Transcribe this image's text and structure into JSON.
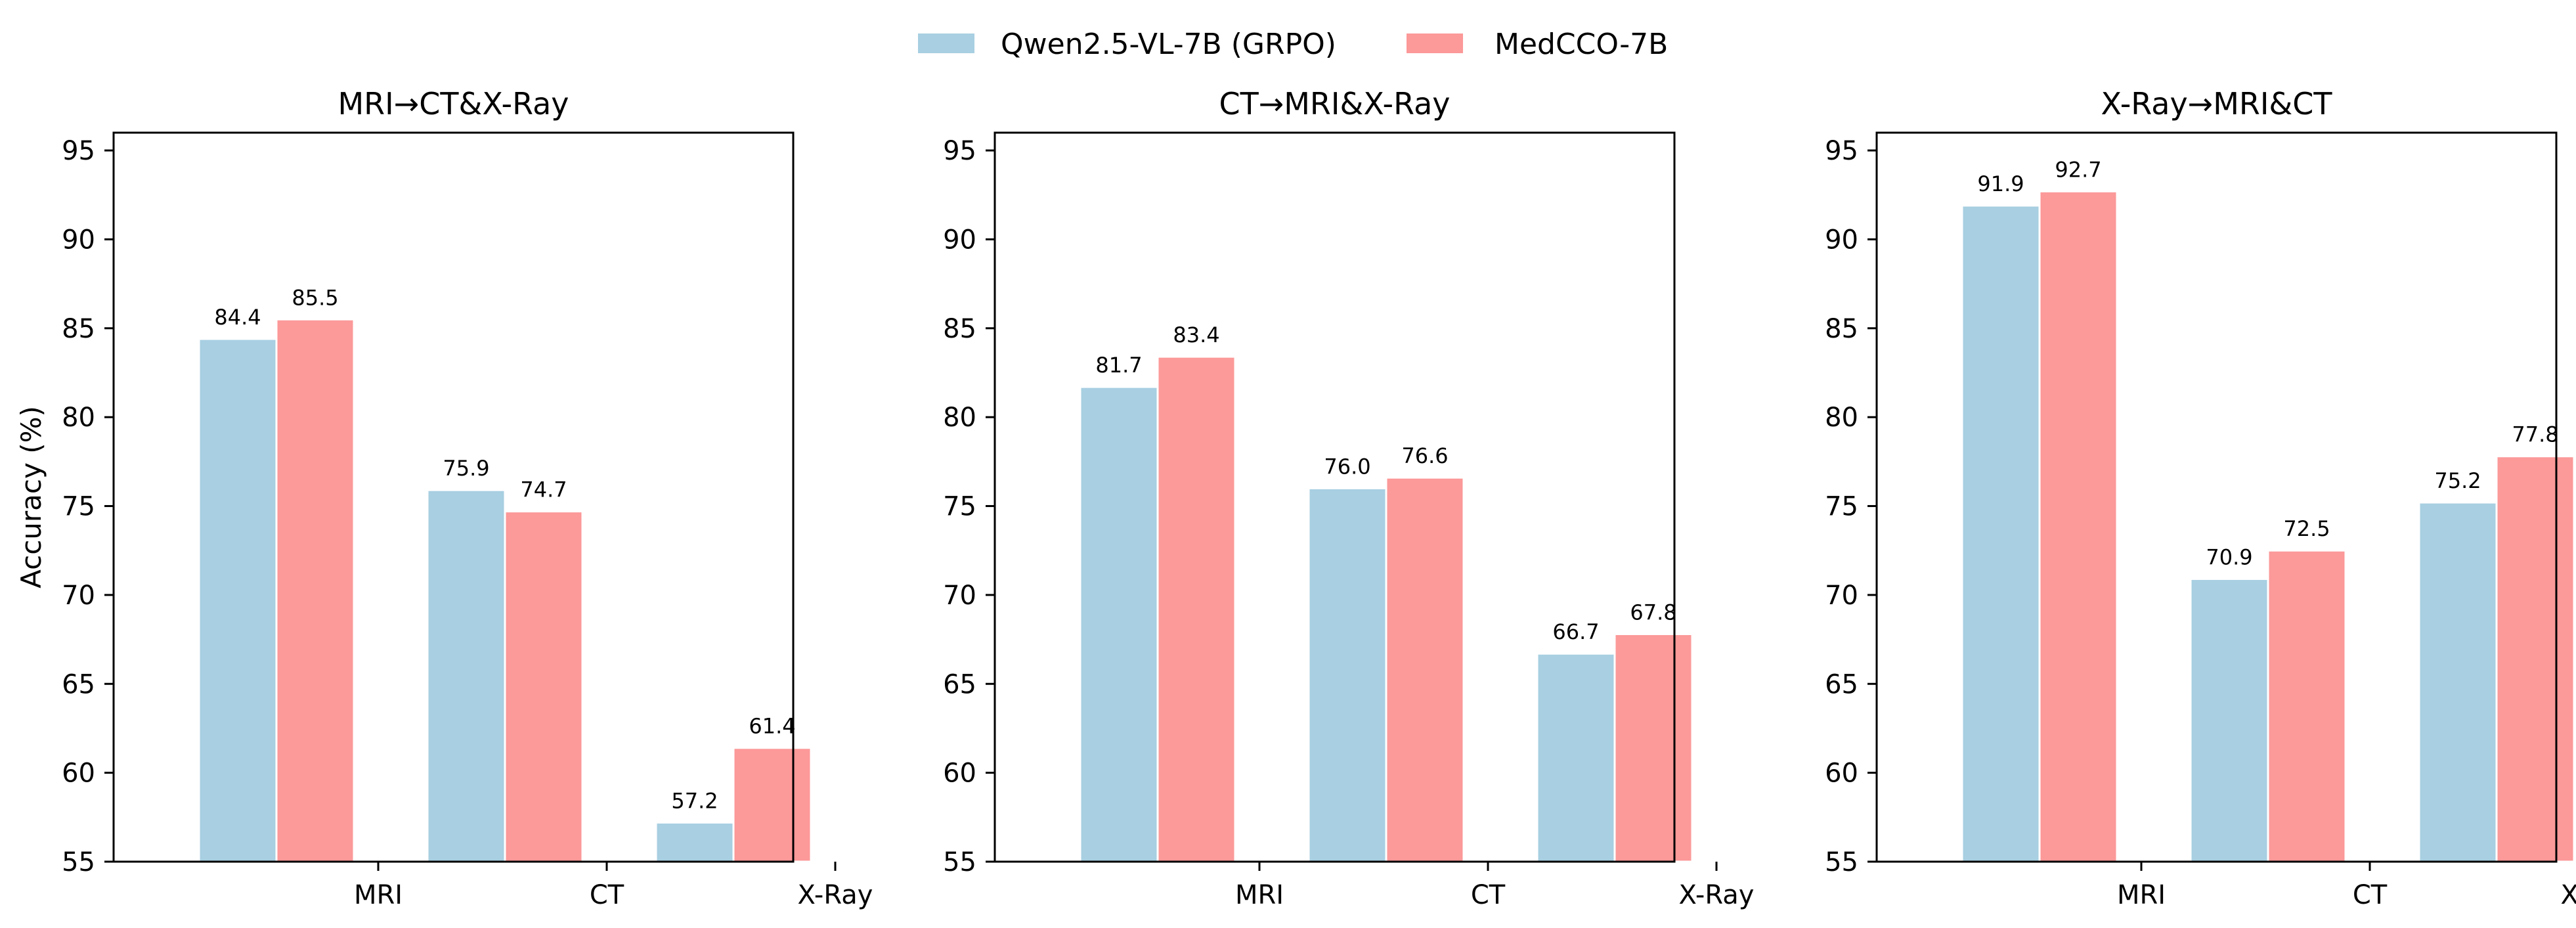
{
  "legend": {
    "items": [
      {
        "label": "Qwen2.5-VL-7B (GRPO)",
        "color": "#a8cfe2"
      },
      {
        "label": "MedCCO-7B",
        "color": "#fc9999"
      }
    ]
  },
  "chart_data": [
    {
      "type": "bar",
      "title": "MRI→CT&X-Ray",
      "xlabel": "",
      "ylabel": "Accuracy (%)",
      "ylim": [
        55,
        96
      ],
      "yticks": [
        55,
        60,
        65,
        70,
        75,
        80,
        85,
        90,
        95
      ],
      "categories": [
        "MRI",
        "CT",
        "X-Ray"
      ],
      "series": [
        {
          "name": "Qwen2.5-VL-7B (GRPO)",
          "values": [
            84.4,
            75.9,
            57.2
          ]
        },
        {
          "name": "MedCCO-7B",
          "values": [
            85.5,
            74.7,
            61.4
          ]
        }
      ]
    },
    {
      "type": "bar",
      "title": "CT→MRI&X-Ray",
      "xlabel": "",
      "ylabel": "",
      "ylim": [
        55,
        96
      ],
      "yticks": [
        55,
        60,
        65,
        70,
        75,
        80,
        85,
        90,
        95
      ],
      "categories": [
        "MRI",
        "CT",
        "X-Ray"
      ],
      "series": [
        {
          "name": "Qwen2.5-VL-7B (GRPO)",
          "values": [
            81.7,
            76.0,
            66.7
          ]
        },
        {
          "name": "MedCCO-7B",
          "values": [
            83.4,
            76.6,
            67.8
          ]
        }
      ]
    },
    {
      "type": "bar",
      "title": "X-Ray→MRI&CT",
      "xlabel": "",
      "ylabel": "",
      "ylim": [
        55,
        96
      ],
      "yticks": [
        55,
        60,
        65,
        70,
        75,
        80,
        85,
        90,
        95
      ],
      "categories": [
        "MRI",
        "CT",
        "X-Ray"
      ],
      "series": [
        {
          "name": "Qwen2.5-VL-7B (GRPO)",
          "values": [
            91.9,
            70.9,
            75.2
          ]
        },
        {
          "name": "MedCCO-7B",
          "values": [
            92.7,
            72.5,
            77.8
          ]
        }
      ]
    }
  ]
}
